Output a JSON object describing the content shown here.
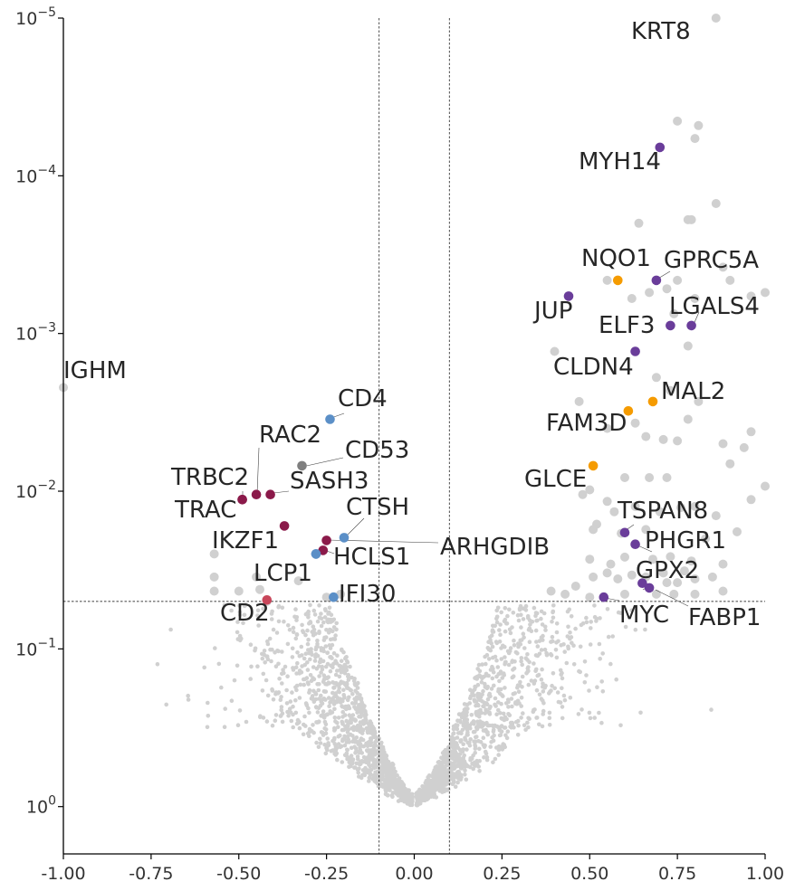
{
  "chart_data": {
    "type": "scatter",
    "title": "",
    "xlabel": "",
    "ylabel": "",
    "xlim": [
      -1.0,
      1.0
    ],
    "ylim": [
      1.0,
      1e-05
    ],
    "y_scale": "log-reversed",
    "x_ticks": [
      "-1.00",
      "-0.75",
      "-0.50",
      "-0.25",
      "0.00",
      "0.25",
      "0.50",
      "0.75",
      "1.00"
    ],
    "x_tick_values": [
      -1.0,
      -0.75,
      -0.5,
      -0.25,
      0.0,
      0.25,
      0.5,
      0.75,
      1.0
    ],
    "y_ticks": [
      {
        "base": "10",
        "exp": "−5",
        "value": 1e-05
      },
      {
        "base": "10",
        "exp": "−4",
        "value": 0.0001
      },
      {
        "base": "10",
        "exp": "−3",
        "value": 0.001
      },
      {
        "base": "10",
        "exp": "−2",
        "value": 0.01
      },
      {
        "base": "10",
        "exp": "−1",
        "value": 0.1
      },
      {
        "base": "10",
        "exp": "0",
        "value": 1
      }
    ],
    "thresholds": {
      "x": [
        -0.1,
        0.1
      ],
      "y": 0.05
    },
    "grid": false,
    "colors": {
      "background_points": "#d0d0d0",
      "purple": "#6a3d9a",
      "orange": "#f59b00",
      "crimson": "#8b1a4a",
      "blue": "#5b8fc7",
      "gray": "#7f7f7f",
      "red": "#c8465a",
      "label_text": "#262626"
    },
    "labeled_genes": [
      {
        "gene": "KRT8",
        "x": 0.86,
        "y": 1e-05,
        "color": "gray"
      },
      {
        "gene": "MYH14",
        "x": 0.7,
        "y": 6.6e-05,
        "color": "purple"
      },
      {
        "gene": "NQO1",
        "x": 0.58,
        "y": 0.00046,
        "color": "orange"
      },
      {
        "gene": "GPRC5A",
        "x": 0.69,
        "y": 0.00046,
        "color": "purple"
      },
      {
        "gene": "JUP",
        "x": 0.44,
        "y": 0.00058,
        "color": "purple"
      },
      {
        "gene": "LGALS4",
        "x": 0.79,
        "y": 0.00089,
        "color": "purple"
      },
      {
        "gene": "ELF3",
        "x": 0.73,
        "y": 0.00089,
        "color": "purple"
      },
      {
        "gene": "CLDN4",
        "x": 0.63,
        "y": 0.0013,
        "color": "purple"
      },
      {
        "gene": "MAL2",
        "x": 0.68,
        "y": 0.0027,
        "color": "orange"
      },
      {
        "gene": "FAM3D",
        "x": 0.61,
        "y": 0.0031,
        "color": "orange"
      },
      {
        "gene": "IGHM",
        "x": -1.0,
        "y": 0.0022,
        "color": "gray"
      },
      {
        "gene": "CD4",
        "x": -0.24,
        "y": 0.0035,
        "color": "blue"
      },
      {
        "gene": "RAC2",
        "x": -0.45,
        "y": 0.0105,
        "color": "crimson"
      },
      {
        "gene": "CD53",
        "x": -0.32,
        "y": 0.0069,
        "color": "gray"
      },
      {
        "gene": "GLCE",
        "x": 0.51,
        "y": 0.0069,
        "color": "orange"
      },
      {
        "gene": "TRBC2",
        "x": -0.49,
        "y": 0.0113,
        "color": "crimson"
      },
      {
        "gene": "SASH3",
        "x": -0.41,
        "y": 0.0105,
        "color": "crimson"
      },
      {
        "gene": "TRAC",
        "x": -0.49,
        "y": 0.0113,
        "color": "crimson"
      },
      {
        "gene": "CTSH",
        "x": -0.2,
        "y": 0.0197,
        "color": "blue"
      },
      {
        "gene": "TSPAN8",
        "x": 0.6,
        "y": 0.0183,
        "color": "purple"
      },
      {
        "gene": "IKZF1",
        "x": -0.37,
        "y": 0.0166,
        "color": "crimson"
      },
      {
        "gene": "ARHGDIB",
        "x": -0.25,
        "y": 0.0205,
        "color": "crimson"
      },
      {
        "gene": "PHGR1",
        "x": 0.63,
        "y": 0.0217,
        "color": "purple"
      },
      {
        "gene": "HCLS1",
        "x": -0.28,
        "y": 0.025,
        "color": "blue"
      },
      {
        "gene": "HCLS1-b",
        "x": -0.26,
        "y": 0.0237,
        "color": "crimson"
      },
      {
        "gene": "LCP1",
        "x": -0.28,
        "y": 0.025,
        "color": "blue"
      },
      {
        "gene": "GPX2",
        "x": 0.65,
        "y": 0.0383,
        "color": "purple"
      },
      {
        "gene": "IFI30",
        "x": -0.23,
        "y": 0.047,
        "color": "blue"
      },
      {
        "gene": "MYC",
        "x": 0.54,
        "y": 0.047,
        "color": "purple"
      },
      {
        "gene": "FABP1",
        "x": 0.67,
        "y": 0.041,
        "color": "purple"
      },
      {
        "gene": "CD2",
        "x": -0.42,
        "y": 0.049,
        "color": "red"
      }
    ],
    "labels": [
      {
        "text": "KRT8"
      },
      {
        "text": "MYH14"
      },
      {
        "text": "NQO1"
      },
      {
        "text": "GPRC5A"
      },
      {
        "text": "JUP"
      },
      {
        "text": "LGALS4"
      },
      {
        "text": "ELF3"
      },
      {
        "text": "CLDN4"
      },
      {
        "text": "MAL2"
      },
      {
        "text": "FAM3D"
      },
      {
        "text": "IGHM"
      },
      {
        "text": "CD4"
      },
      {
        "text": "RAC2"
      },
      {
        "text": "CD53"
      },
      {
        "text": "GLCE"
      },
      {
        "text": "TRBC2"
      },
      {
        "text": "SASH3"
      },
      {
        "text": "TRAC"
      },
      {
        "text": "CTSH"
      },
      {
        "text": "TSPAN8"
      },
      {
        "text": "IKZF1"
      },
      {
        "text": "ARHGDIB"
      },
      {
        "text": "PHGR1"
      },
      {
        "text": "HCLS1"
      },
      {
        "text": "LCP1"
      },
      {
        "text": "GPX2"
      },
      {
        "text": "IFI30"
      },
      {
        "text": "MYC"
      },
      {
        "text": "FABP1"
      },
      {
        "text": "CD2"
      }
    ]
  }
}
